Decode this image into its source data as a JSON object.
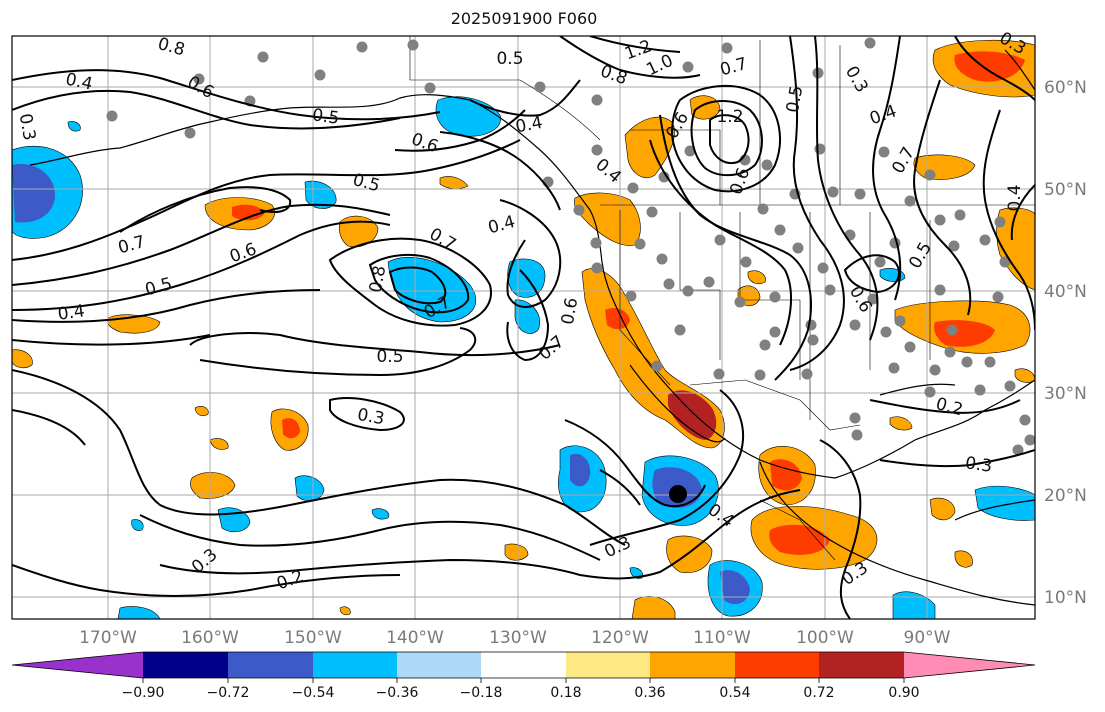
{
  "title": "2025091900 F060",
  "lat_labels": [
    "60°N",
    "50°N",
    "40°N",
    "30°N",
    "20°N",
    "10°N"
  ],
  "lon_labels": [
    "170°W",
    "160°W",
    "150°W",
    "140°W",
    "130°W",
    "120°W",
    "110°W",
    "100°W",
    "90°W"
  ],
  "colorbar": {
    "colors": [
      "#9932cc",
      "#00008b",
      "#3c5ac8",
      "#00bfff",
      "#add8f6",
      "#ffffff",
      "#fde884",
      "#ffa500",
      "#ff3c00",
      "#b22222",
      "#ff8cb4"
    ],
    "ticks": [
      "−0.90",
      "−0.72",
      "−0.54",
      "−0.36",
      "−0.18",
      "0.18",
      "0.36",
      "0.54",
      "0.72",
      "0.90"
    ]
  },
  "contour_labels": [
    "0.4",
    "0.3",
    "0.8",
    "0.6",
    "0.5",
    "0.6",
    "0.5",
    "1.2",
    "1.0",
    "0.8",
    "0.7",
    "0.3",
    "0.5",
    "0.4",
    "0.4",
    "0.6",
    "0.5",
    "0.4",
    "0.6",
    "1.2",
    "0.4",
    "0.7",
    "0.5",
    "0.6",
    "0.7",
    "0.8",
    "0.4",
    "0.6",
    "0.7",
    "0.7",
    "0.5",
    "0.4",
    "0.6",
    "0.7",
    "0.5",
    "0.3",
    "0.3",
    "0.2",
    "0.3",
    "0.4",
    "0.3",
    "0.3",
    "0.3",
    "0.2"
  ],
  "colors": {
    "frame": "#000000",
    "grid": "#aaaaaa",
    "dots": "#808080",
    "storm": "#000000"
  }
}
